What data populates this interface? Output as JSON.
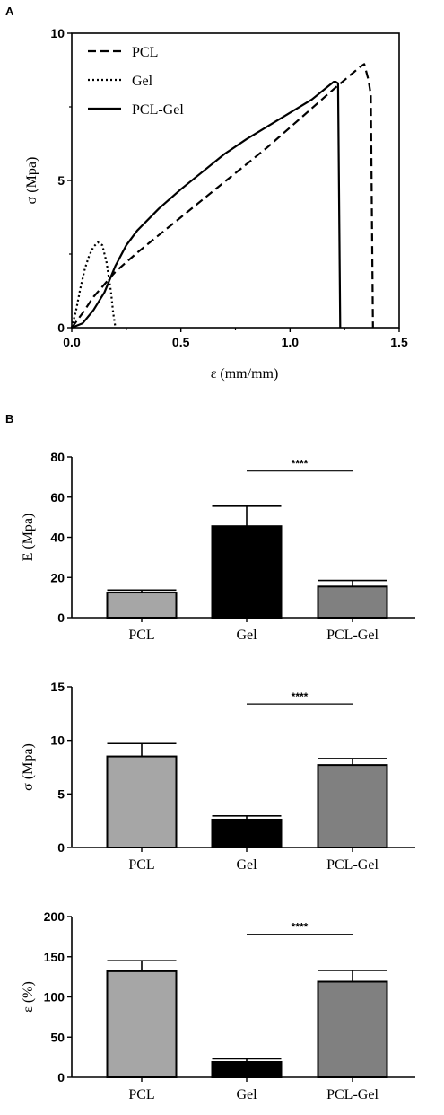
{
  "panels": {
    "a": "A",
    "b": "B"
  },
  "chart_data": [
    {
      "type": "line",
      "xlabel": "ε (mm/mm)",
      "ylabel": "σ (Mpa)",
      "xlim": [
        0,
        1.5
      ],
      "ylim": [
        0,
        10
      ],
      "xticks": [
        "0.0",
        "0.5",
        "1.0",
        "1.5"
      ],
      "yticks": [
        "0",
        "5",
        "10"
      ],
      "legend_position": "top-left",
      "series": [
        {
          "name": "PCL",
          "style": "dashed",
          "x": [
            0,
            0.05,
            0.1,
            0.2,
            0.3,
            0.4,
            0.5,
            0.6,
            0.7,
            0.8,
            0.9,
            1.0,
            1.1,
            1.2,
            1.28,
            1.32,
            1.34,
            1.36,
            1.37,
            1.38
          ],
          "y": [
            0,
            0.5,
            1.05,
            1.9,
            2.55,
            3.15,
            3.75,
            4.35,
            4.95,
            5.55,
            6.15,
            6.8,
            7.45,
            8.1,
            8.6,
            8.85,
            8.95,
            8.4,
            7.9,
            0
          ]
        },
        {
          "name": "Gel",
          "style": "dotted",
          "x": [
            0,
            0.02,
            0.04,
            0.06,
            0.08,
            0.1,
            0.12,
            0.14,
            0.16,
            0.18,
            0.19,
            0.2
          ],
          "y": [
            0,
            0.6,
            1.35,
            2.0,
            2.45,
            2.75,
            2.9,
            2.8,
            2.2,
            1.2,
            0.5,
            0
          ]
        },
        {
          "name": "PCL-Gel",
          "style": "solid",
          "x": [
            0,
            0.05,
            0.1,
            0.15,
            0.2,
            0.25,
            0.3,
            0.4,
            0.5,
            0.6,
            0.7,
            0.8,
            0.9,
            1.0,
            1.1,
            1.2,
            1.21,
            1.22,
            1.23
          ],
          "y": [
            0,
            0.15,
            0.6,
            1.2,
            2.1,
            2.8,
            3.3,
            4.05,
            4.7,
            5.3,
            5.9,
            6.4,
            6.85,
            7.3,
            7.75,
            8.35,
            8.35,
            8.3,
            0
          ]
        }
      ]
    },
    {
      "type": "bar",
      "ylabel": "E (Mpa)",
      "ylim": [
        0,
        80
      ],
      "yticks": [
        "0",
        "20",
        "40",
        "60",
        "80"
      ],
      "categories": [
        "PCL",
        "Gel",
        "PCL-Gel"
      ],
      "values": [
        12.5,
        45.5,
        15.5
      ],
      "errors": [
        1.2,
        10,
        3
      ],
      "colors": [
        "#a6a6a6",
        "#000000",
        "#808080"
      ],
      "significance": {
        "label": "****",
        "from": 1,
        "to": 2,
        "y": 73
      }
    },
    {
      "type": "bar",
      "ylabel": "σ (Mpa)",
      "ylim": [
        0,
        15
      ],
      "yticks": [
        "0",
        "5",
        "10",
        "15"
      ],
      "categories": [
        "PCL",
        "Gel",
        "PCL-Gel"
      ],
      "values": [
        8.5,
        2.6,
        7.7
      ],
      "errors": [
        1.2,
        0.35,
        0.6
      ],
      "colors": [
        "#a6a6a6",
        "#000000",
        "#808080"
      ],
      "significance": {
        "label": "****",
        "from": 1,
        "to": 2,
        "y": 13.4
      }
    },
    {
      "type": "bar",
      "ylabel": "ε (%)",
      "ylim": [
        0,
        200
      ],
      "yticks": [
        "0",
        "50",
        "100",
        "150",
        "200"
      ],
      "categories": [
        "PCL",
        "Gel",
        "PCL-Gel"
      ],
      "values": [
        132,
        19,
        119
      ],
      "errors": [
        13,
        4,
        14
      ],
      "colors": [
        "#a6a6a6",
        "#000000",
        "#808080"
      ],
      "significance": {
        "label": "****",
        "from": 1,
        "to": 2,
        "y": 178
      }
    }
  ]
}
